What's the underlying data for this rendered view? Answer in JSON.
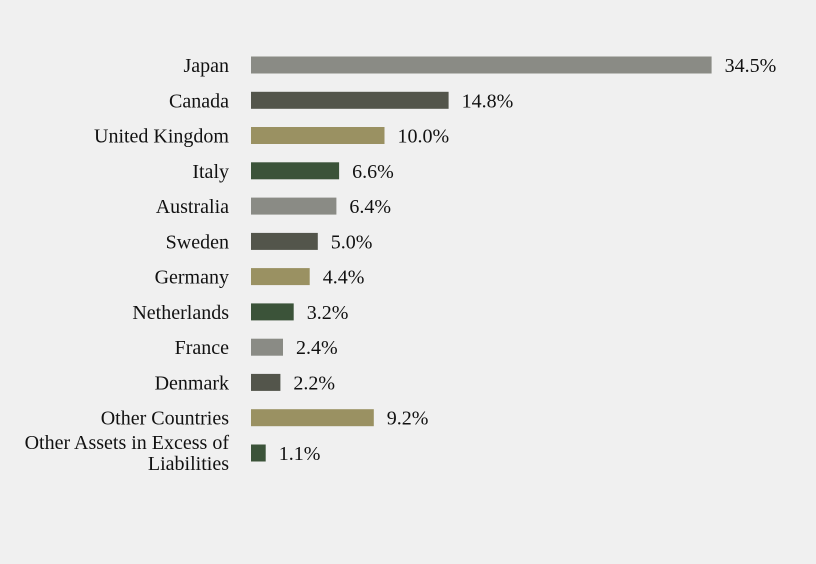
{
  "chart_data": {
    "type": "bar",
    "orientation": "horizontal",
    "categories": [
      "Japan",
      "Canada",
      "United Kingdom",
      "Italy",
      "Australia",
      "Sweden",
      "Germany",
      "Netherlands",
      "France",
      "Denmark",
      "Other Countries",
      "Other Assets in Excess of Liabilities"
    ],
    "values": [
      34.5,
      14.8,
      10.0,
      6.6,
      6.4,
      5.0,
      4.4,
      3.2,
      2.4,
      2.2,
      9.2,
      1.1
    ],
    "value_labels": [
      "34.5%",
      "14.8%",
      "10.0%",
      "6.6%",
      "6.4%",
      "5.0%",
      "4.4%",
      "3.2%",
      "2.4%",
      "2.2%",
      "9.2%",
      "1.1%"
    ],
    "title": "",
    "xlabel": "",
    "ylabel": "",
    "unit": "%",
    "grid": false,
    "legend": "none",
    "bar_colors": [
      "#8a8b85",
      "#53554b",
      "#9a9162",
      "#3b5339"
    ]
  }
}
